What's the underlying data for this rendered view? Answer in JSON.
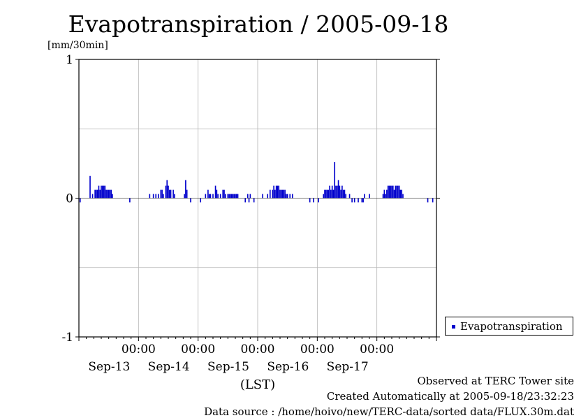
{
  "chart_data": {
    "type": "bar",
    "title": "Evapotranspiration / 2005-09-18",
    "ylabel": "[mm/30min]",
    "xlabel": "(LST)",
    "ylim": [
      -1,
      1
    ],
    "y_ticks": [
      {
        "value": 1,
        "label": "1"
      },
      {
        "value": 0,
        "label": "0"
      },
      {
        "value": -1,
        "label": "-1"
      }
    ],
    "y_grid": [
      -0.5,
      0.5
    ],
    "x_range_hours": [
      0,
      144
    ],
    "x_ticks": [
      {
        "hour": 24,
        "time": "00:00",
        "date": "Sep-13"
      },
      {
        "hour": 48,
        "time": "00:00",
        "date": "Sep-14"
      },
      {
        "hour": 72,
        "time": "00:00",
        "date": "Sep-15"
      },
      {
        "hour": 96,
        "time": "00:00",
        "date": "Sep-16"
      },
      {
        "hour": 120,
        "time": "00:00",
        "date": "Sep-17"
      }
    ],
    "grid": true,
    "series": [
      {
        "name": "Evapotranspiration",
        "color": "#0000cc",
        "bars": [
          [
            0.5,
            -0.03
          ],
          [
            4.5,
            0.16
          ],
          [
            5.5,
            0.03
          ],
          [
            6.5,
            0.06
          ],
          [
            7,
            0.06
          ],
          [
            7.5,
            0.06
          ],
          [
            8,
            0.09
          ],
          [
            8.5,
            0.06
          ],
          [
            9,
            0.09
          ],
          [
            9.5,
            0.09
          ],
          [
            10,
            0.09
          ],
          [
            10.5,
            0.09
          ],
          [
            11,
            0.06
          ],
          [
            11.5,
            0.06
          ],
          [
            12,
            0.06
          ],
          [
            12.5,
            0.06
          ],
          [
            13,
            0.06
          ],
          [
            13.5,
            0.03
          ],
          [
            20.5,
            -0.03
          ],
          [
            28.5,
            0.03
          ],
          [
            30,
            0.03
          ],
          [
            31,
            0.03
          ],
          [
            32,
            0.03
          ],
          [
            33,
            0.06
          ],
          [
            33.5,
            0.06
          ],
          [
            34,
            0.03
          ],
          [
            35,
            0.09
          ],
          [
            35.5,
            0.13
          ],
          [
            36,
            0.09
          ],
          [
            36.5,
            0.06
          ],
          [
            37,
            0.06
          ],
          [
            38,
            0.06
          ],
          [
            38.5,
            0.03
          ],
          [
            42.5,
            0.03
          ],
          [
            43,
            0.13
          ],
          [
            43.5,
            0.06
          ],
          [
            45,
            -0.03
          ],
          [
            49,
            -0.03
          ],
          [
            51,
            0.03
          ],
          [
            52,
            0.06
          ],
          [
            52.5,
            0.03
          ],
          [
            53,
            0.03
          ],
          [
            54,
            0.03
          ],
          [
            55,
            0.09
          ],
          [
            55.5,
            0.06
          ],
          [
            56,
            0.03
          ],
          [
            57,
            0.03
          ],
          [
            58,
            0.06
          ],
          [
            58.5,
            0.06
          ],
          [
            59,
            0.03
          ],
          [
            60,
            0.03
          ],
          [
            60.5,
            0.03
          ],
          [
            61,
            0.03
          ],
          [
            61.5,
            0.03
          ],
          [
            62,
            0.03
          ],
          [
            62.5,
            0.03
          ],
          [
            63,
            0.03
          ],
          [
            63.5,
            0.03
          ],
          [
            64,
            0.03
          ],
          [
            67,
            -0.03
          ],
          [
            68,
            0.03
          ],
          [
            68.5,
            -0.03
          ],
          [
            69,
            0.03
          ],
          [
            70.5,
            -0.03
          ],
          [
            74,
            0.03
          ],
          [
            76,
            0.03
          ],
          [
            77,
            0.06
          ],
          [
            78,
            0.06
          ],
          [
            78.5,
            0.09
          ],
          [
            79,
            0.06
          ],
          [
            79.5,
            0.09
          ],
          [
            80,
            0.09
          ],
          [
            80.5,
            0.09
          ],
          [
            81,
            0.06
          ],
          [
            81.5,
            0.06
          ],
          [
            82,
            0.06
          ],
          [
            82.5,
            0.06
          ],
          [
            83,
            0.06
          ],
          [
            83.5,
            0.03
          ],
          [
            84,
            0.03
          ],
          [
            85,
            0.03
          ],
          [
            86,
            0.03
          ],
          [
            93,
            -0.03
          ],
          [
            94.5,
            -0.03
          ],
          [
            96.5,
            -0.03
          ],
          [
            98.5,
            0.03
          ],
          [
            99,
            0.06
          ],
          [
            99.5,
            0.06
          ],
          [
            100,
            0.06
          ],
          [
            100.5,
            0.06
          ],
          [
            101,
            0.09
          ],
          [
            101.5,
            0.06
          ],
          [
            102,
            0.09
          ],
          [
            102.5,
            0.06
          ],
          [
            103,
            0.26
          ],
          [
            103.5,
            0.09
          ],
          [
            104,
            0.09
          ],
          [
            104.5,
            0.13
          ],
          [
            105,
            0.09
          ],
          [
            105.5,
            0.06
          ],
          [
            106,
            0.09
          ],
          [
            106.5,
            0.06
          ],
          [
            107,
            0.06
          ],
          [
            107.5,
            0.03
          ],
          [
            109,
            0.03
          ],
          [
            110,
            -0.03
          ],
          [
            111,
            -0.03
          ],
          [
            112.5,
            -0.03
          ],
          [
            114,
            -0.03
          ],
          [
            115,
            0.03
          ],
          [
            114.5,
            -0.03
          ],
          [
            117,
            0.03
          ],
          [
            122.5,
            0.03
          ],
          [
            123,
            0.06
          ],
          [
            123.5,
            0.03
          ],
          [
            124,
            0.06
          ],
          [
            124.5,
            0.09
          ],
          [
            125,
            0.09
          ],
          [
            125.5,
            0.09
          ],
          [
            126,
            0.09
          ],
          [
            126.5,
            0.09
          ],
          [
            127,
            0.06
          ],
          [
            127.5,
            0.09
          ],
          [
            128,
            0.09
          ],
          [
            128.5,
            0.09
          ],
          [
            129,
            0.09
          ],
          [
            129.5,
            0.06
          ],
          [
            130,
            0.06
          ],
          [
            130.5,
            0.03
          ],
          [
            140.5,
            -0.03
          ],
          [
            142.5,
            -0.03
          ]
        ]
      }
    ]
  },
  "legend": {
    "label": "Evapotranspiration",
    "marker_color": "#0000cc"
  },
  "footer": {
    "line1": "Observed at TERC Tower site",
    "line2": "Created Automatically at 2005-09-18/23:32:23",
    "line3": "Data source : /home/hoivo/new/TERC-data/sorted  data/FLUX.30m.dat"
  }
}
